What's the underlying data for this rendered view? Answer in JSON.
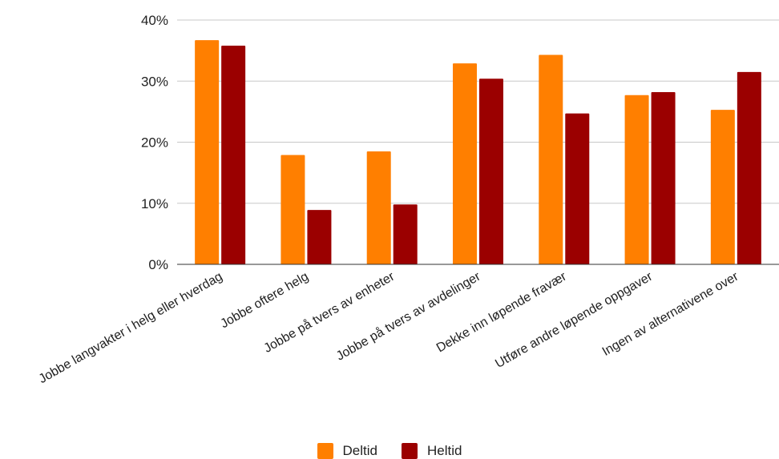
{
  "chart_data": {
    "type": "bar",
    "categories": [
      "Jobbe langvakter i helg eller hverdag",
      "Jobbe oftere helg",
      "Jobbe på tvers av enheter",
      "Jobbe på tvers av avdelinger",
      "Dekke inn løpende fravær",
      "Utføre andre løpende oppgaver",
      "Ingen av alternativene over"
    ],
    "series": [
      {
        "name": "Deltid",
        "color": "#ff7f00",
        "values": [
          36.7,
          17.9,
          18.5,
          32.9,
          34.3,
          27.7,
          25.3
        ]
      },
      {
        "name": "Heltid",
        "color": "#9b0000",
        "values": [
          35.8,
          8.9,
          9.8,
          30.4,
          24.7,
          28.2,
          31.5
        ]
      }
    ],
    "ylim": [
      0,
      40
    ],
    "yticks": [
      "0%",
      "10%",
      "20%",
      "30%",
      "40%"
    ],
    "grid": true,
    "legend_position": "bottom"
  }
}
